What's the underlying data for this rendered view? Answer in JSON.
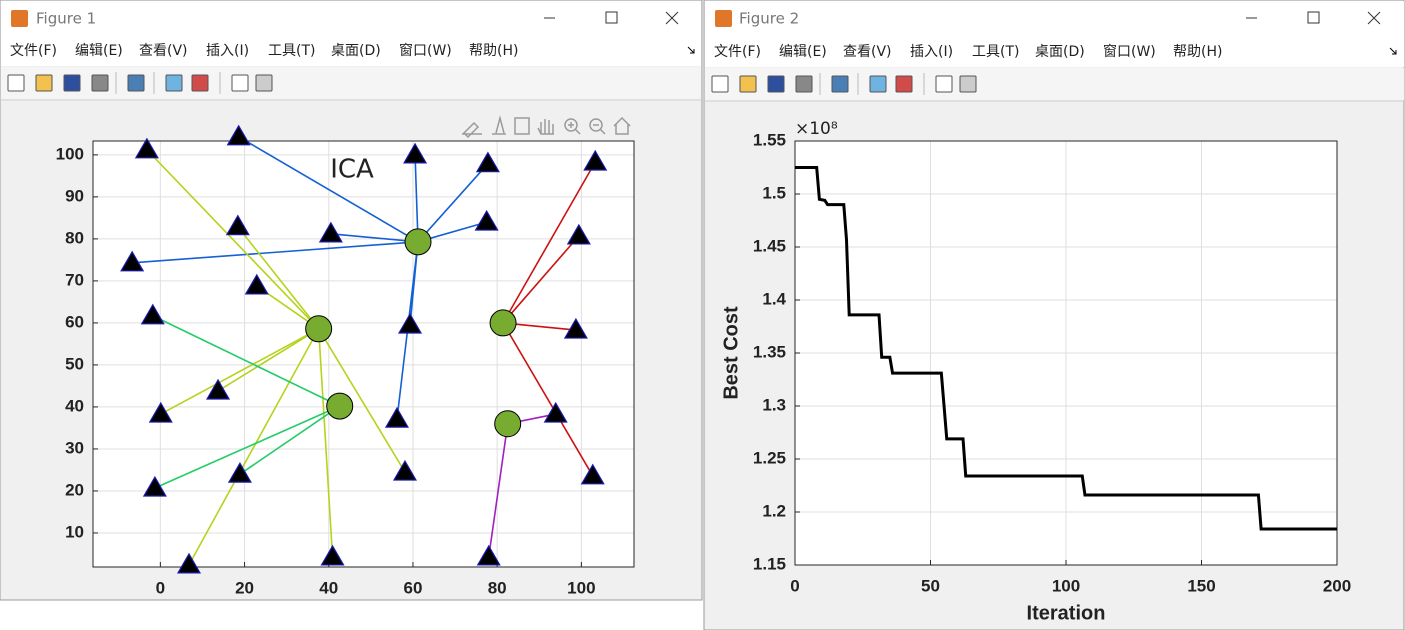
{
  "windows": [
    {
      "title": "Figure 1",
      "menu": [
        "文件(F)",
        "编辑(E)",
        "查看(V)",
        "插入(I)",
        "工具(T)",
        "桌面(D)",
        "窗口(W)",
        "帮助(H)"
      ]
    },
    {
      "title": "Figure 2",
      "menu": [
        "文件(F)",
        "编辑(E)",
        "查看(V)",
        "插入(I)",
        "工具(T)",
        "桌面(D)",
        "窗口(W)",
        "帮助(H)"
      ]
    }
  ],
  "chart_data": [
    {
      "type": "scatter",
      "title": "ICA",
      "xlim": [
        -16,
        112.5
      ],
      "ylim": [
        1.9,
        103.3
      ],
      "xticks": [
        0,
        20,
        40,
        60,
        80,
        100
      ],
      "yticks": [
        10,
        20,
        30,
        40,
        50,
        60,
        70,
        80,
        90,
        100
      ],
      "grid": true,
      "imperialist_color": "#77ac30",
      "colony_color": "#000000",
      "series": [
        {
          "color": "#1560d4",
          "imperialist_x": 61.2,
          "imperialist_y": 79.3,
          "x": [
            18.6,
            60.5,
            77.8,
            77.5,
            40.5,
            -6.7,
            59.3,
            56.2
          ],
          "y": [
            104.3,
            100,
            97.9,
            84,
            81.2,
            74.3,
            59.5,
            37.1
          ]
        },
        {
          "color": "#b4d41c",
          "imperialist_x": 37.6,
          "imperialist_y": 58.6,
          "x": [
            -3.2,
            18.4,
            22.9,
            13.7,
            0.1,
            6.8,
            40.9,
            58.1
          ],
          "y": [
            101.2,
            82.9,
            68.8,
            43.8,
            38.3,
            2.4,
            4.3,
            24.5
          ]
        },
        {
          "color": "#22cc66",
          "imperialist_x": 42.6,
          "imperialist_y": 40.2,
          "x": [
            -1.8,
            -1.3,
            18.9
          ],
          "y": [
            61.7,
            20.7,
            24.0
          ]
        },
        {
          "color": "#cc1111",
          "imperialist_x": 81.4,
          "imperialist_y": 60.0,
          "x": [
            103.3,
            99.4,
            98.7,
            102.7
          ],
          "y": [
            98.3,
            80.7,
            58.3,
            23.6
          ]
        },
        {
          "color": "#a020c0",
          "imperialist_x": 82.5,
          "imperialist_y": 36.0,
          "x": [
            93.9,
            78.0
          ],
          "y": [
            38.3,
            4.3
          ]
        }
      ]
    },
    {
      "type": "line",
      "xlabel": "Iteration",
      "ylabel": "Best Cost",
      "y_multiplier": "×10⁸",
      "xlim": [
        0,
        200
      ],
      "ylim": [
        1.15,
        1.55
      ],
      "xticks": [
        0,
        50,
        100,
        150,
        200
      ],
      "yticks": [
        1.15,
        1.2,
        1.25,
        1.3,
        1.35,
        1.4,
        1.45,
        1.5,
        1.55
      ],
      "grid": true,
      "x": [
        0,
        8,
        9,
        11,
        12,
        18,
        19,
        20,
        31,
        32,
        35,
        36,
        54,
        55,
        56,
        62,
        63,
        106,
        107,
        171,
        172,
        200
      ],
      "series": [
        {
          "color": "#000000",
          "values": [
            1.525,
            1.525,
            1.495,
            1.494,
            1.49,
            1.49,
            1.457,
            1.386,
            1.386,
            1.346,
            1.346,
            1.331,
            1.331,
            1.3,
            1.269,
            1.269,
            1.234,
            1.234,
            1.216,
            1.216,
            1.184,
            1.184
          ]
        }
      ]
    }
  ]
}
